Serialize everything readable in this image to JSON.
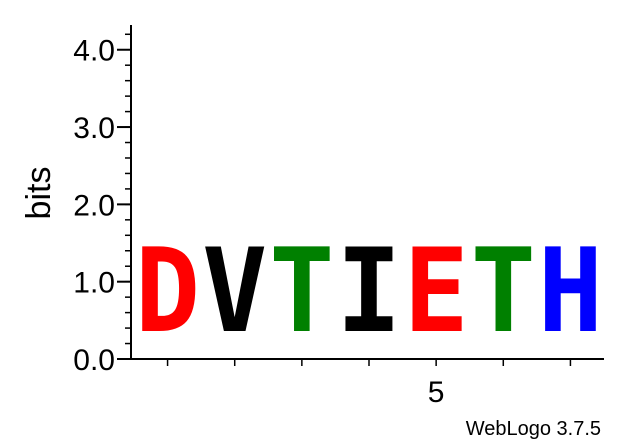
{
  "chart_data": {
    "type": "sequence-logo",
    "ylabel": "bits",
    "ylim": [
      0,
      4.32
    ],
    "y_tick_labels": [
      "0.0",
      "1.0",
      "2.0",
      "3.0",
      "4.0"
    ],
    "y_ticks": [
      0,
      1,
      2,
      3,
      4
    ],
    "y_minor_step": 0.2,
    "x_positions": [
      1,
      2,
      3,
      4,
      5,
      6,
      7
    ],
    "x_tick_labels": [
      {
        "position": 5,
        "label": "5"
      }
    ],
    "columns": [
      {
        "position": 1,
        "letter": "D",
        "bits": 1.76,
        "color": "#ff0000"
      },
      {
        "position": 2,
        "letter": "V",
        "bits": 1.76,
        "color": "#000000"
      },
      {
        "position": 3,
        "letter": "T",
        "bits": 1.76,
        "color": "#008000"
      },
      {
        "position": 4,
        "letter": "I",
        "bits": 1.76,
        "color": "#000000"
      },
      {
        "position": 5,
        "letter": "E",
        "bits": 1.76,
        "color": "#ff0000"
      },
      {
        "position": 6,
        "letter": "T",
        "bits": 1.76,
        "color": "#008000"
      },
      {
        "position": 7,
        "letter": "H",
        "bits": 1.76,
        "color": "#0000ff"
      }
    ],
    "footer": "WebLogo 3.7.5"
  }
}
